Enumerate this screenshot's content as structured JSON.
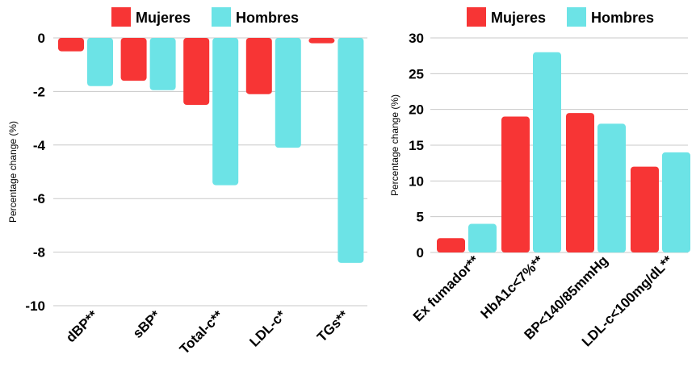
{
  "colors": {
    "mujeres": "#f73535",
    "hombres": "#6ce3e6"
  },
  "chart_data": [
    {
      "type": "bar",
      "categories": [
        "dBP**",
        "sBP*",
        "Total-c**",
        "LDL-c*",
        "TGs**"
      ],
      "series": [
        {
          "name": "Mujeres",
          "values": [
            -0.5,
            -1.6,
            -2.5,
            -2.1,
            -0.2
          ]
        },
        {
          "name": "Hombres",
          "values": [
            -1.8,
            -1.95,
            -5.5,
            -4.1,
            -8.4
          ]
        }
      ],
      "ylabel": "Percentage change (%)",
      "ylim": [
        -10,
        0
      ],
      "yticks": [
        0,
        -2,
        -4,
        -6,
        -8,
        -10
      ],
      "grid": true,
      "legend": "top"
    },
    {
      "type": "bar",
      "categories": [
        "Ex fumador**",
        "HbA1c<7%**",
        "BP<140/85mmHg",
        "LDL-c<100mg/dL**"
      ],
      "series": [
        {
          "name": "Mujeres",
          "values": [
            2,
            19,
            19.5,
            12
          ]
        },
        {
          "name": "Hombres",
          "values": [
            4,
            28,
            18,
            14
          ]
        }
      ],
      "ylabel": "Percentage change (%)",
      "ylim": [
        0,
        30
      ],
      "yticks": [
        30,
        25,
        20,
        15,
        10,
        5,
        0
      ],
      "grid": true,
      "legend": "top"
    }
  ]
}
